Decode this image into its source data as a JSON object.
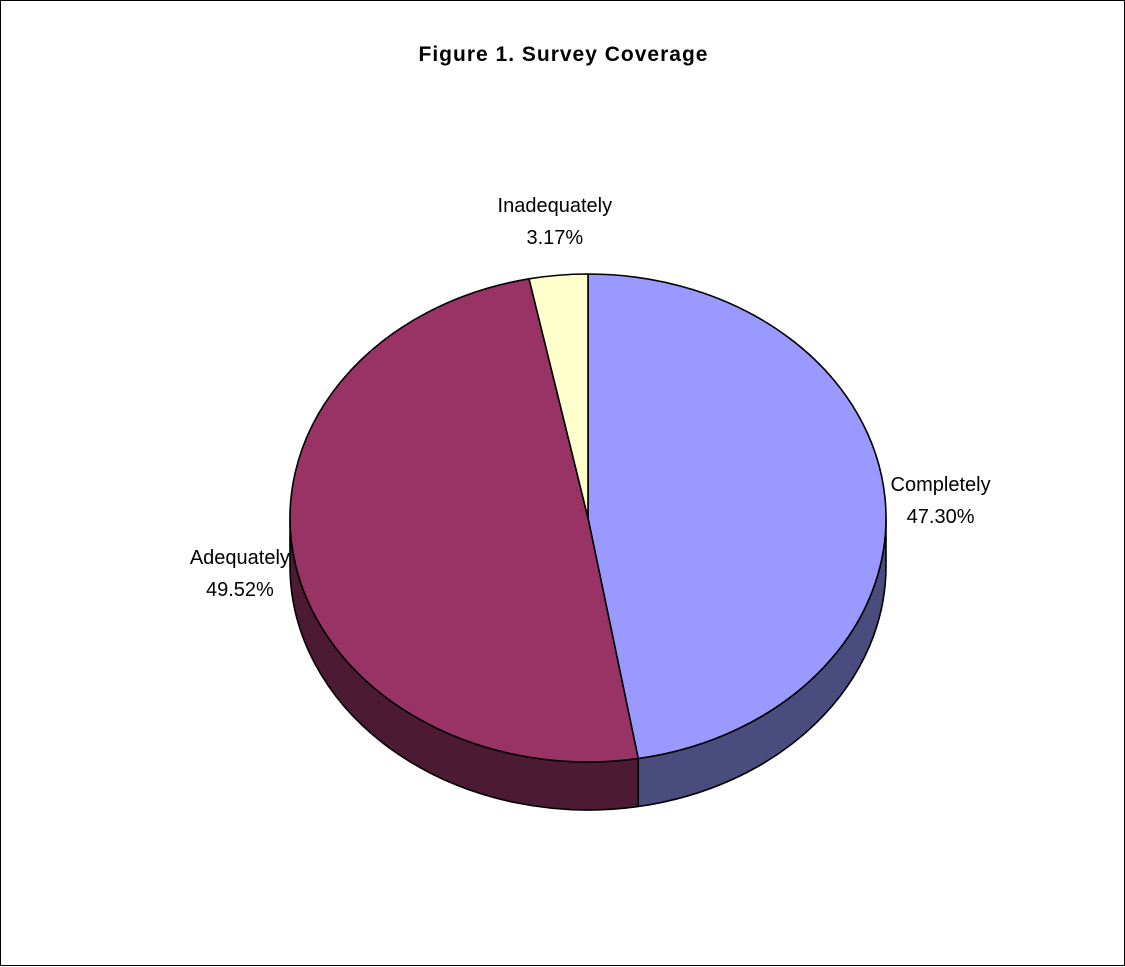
{
  "chart_data": {
    "type": "pie",
    "title": "Figure 1. Survey Coverage",
    "three_d": true,
    "start_angle_deg": 0,
    "direction": "clockwise",
    "slices": [
      {
        "label": "Completely",
        "value": 47.3,
        "value_label": "47.30%",
        "color": "#9999FF",
        "side_color": "#4B4C7E"
      },
      {
        "label": "Adequately",
        "value": 49.52,
        "value_label": "49.52%",
        "color": "#993366",
        "side_color": "#4C1A32"
      },
      {
        "label": "Inadequately",
        "value": 3.17,
        "value_label": "3.17%",
        "color": "#FFFFCC",
        "side_color": "#7F7F66"
      }
    ],
    "legend": "none",
    "data_labels": "category name and percentage"
  }
}
